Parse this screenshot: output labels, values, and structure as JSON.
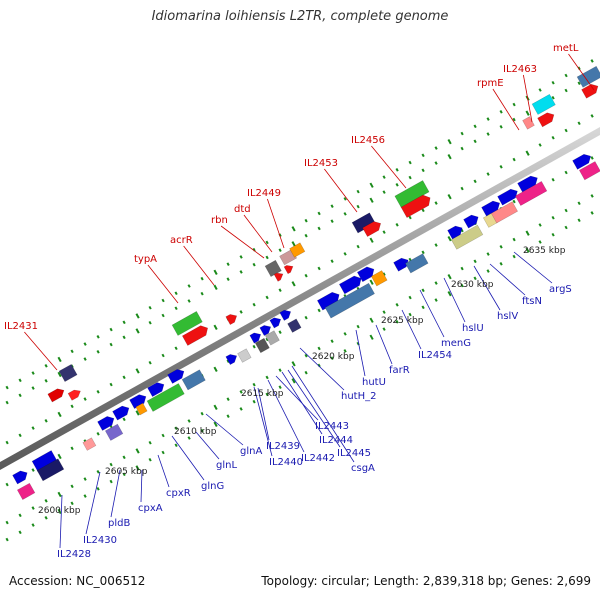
{
  "title": "Idiomarina loihiensis L2TR, complete genome",
  "footer": {
    "accession": "Accession: NC_006512",
    "summary": "Topology: circular; Length: 2,839,318 bp; Genes: 2,699"
  },
  "colors": {
    "label_top": "#cc0000",
    "label_bottom": "#1a1ab0",
    "axis": "#888888",
    "dots": "#1a8a1a"
  },
  "kbp_labels": [
    "2600 kbp",
    "2605 kbp",
    "2610 kbp",
    "2615 kbp",
    "2620 kbp",
    "2625 kbp",
    "2630 kbp",
    "2635 kbp"
  ],
  "top_genes": [
    "IL2431",
    "typA",
    "acrR",
    "rbn",
    "dtd",
    "IL2449",
    "IL2453",
    "IL2456",
    "rpmE",
    "IL2463",
    "metL"
  ],
  "bottom_genes": [
    "IL2428",
    "IL2430",
    "pldB",
    "cpxA",
    "cpxR",
    "glnG",
    "glnL",
    "glnA",
    "IL2439",
    "IL2440",
    "IL2442",
    "IL2443",
    "IL2444",
    "IL2445",
    "csgA",
    "hutH_2",
    "hutU",
    "farR",
    "IL2454",
    "menG",
    "hslU",
    "hslV",
    "ftsN",
    "argS"
  ]
}
